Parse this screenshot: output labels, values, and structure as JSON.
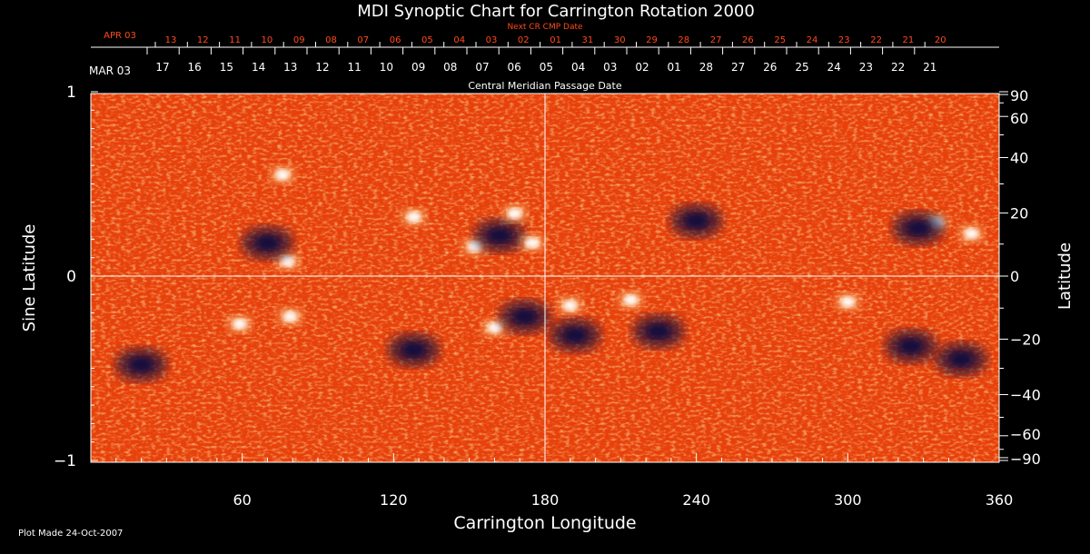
{
  "chart_data": {
    "type": "heatmap",
    "title": "MDI Synoptic Chart for Carrington Rotation 2000",
    "xlabel": "Carrington Longitude",
    "ylabel_left": "Sine Latitude",
    "ylabel_right": "Latitude",
    "xlim": [
      0,
      360
    ],
    "ylim_sine": [
      -1,
      1
    ],
    "x_ticks": [
      "60",
      "120",
      "180",
      "240",
      "300",
      "360"
    ],
    "y_ticks_left": [
      {
        "value": 1,
        "label": "1"
      },
      {
        "value": 0,
        "label": "0"
      },
      {
        "value": -1,
        "label": "−1"
      }
    ],
    "y_ticks_right": [
      {
        "value": 90,
        "label": "90"
      },
      {
        "value": 60,
        "label": "60"
      },
      {
        "value": 40,
        "label": "40"
      },
      {
        "value": 20,
        "label": "20"
      },
      {
        "value": 0,
        "label": "0"
      },
      {
        "value": -20,
        "label": "−20"
      },
      {
        "value": -40,
        "label": "−40"
      },
      {
        "value": -60,
        "label": "−60"
      },
      {
        "value": -90,
        "label": "−90"
      }
    ],
    "next_cr_axis": {
      "title": "Next CR CMP Date",
      "month_label": "APR 03",
      "labels": [
        "13",
        "12",
        "11",
        "10",
        "09",
        "08",
        "07",
        "06",
        "05",
        "04",
        "03",
        "02",
        "01",
        "31",
        "30",
        "29",
        "28",
        "27",
        "26",
        "25",
        "24",
        "23",
        "22",
        "21",
        "20"
      ]
    },
    "cmp_axis": {
      "title": "Central Meridian Passage Date",
      "month_label": "MAR 03",
      "labels": [
        "17",
        "16",
        "15",
        "14",
        "13",
        "12",
        "11",
        "10",
        "09",
        "08",
        "07",
        "06",
        "05",
        "04",
        "03",
        "02",
        "01",
        "28",
        "27",
        "26",
        "25",
        "24",
        "23",
        "22",
        "21"
      ]
    },
    "grid": "crosshair at 180° longitude and equator",
    "features": [
      {
        "polarity": "positive",
        "lon": 76,
        "sinlat": 0.55
      },
      {
        "polarity": "positive",
        "lon": 78,
        "sinlat": 0.08
      },
      {
        "polarity": "negative",
        "lon": 70,
        "sinlat": 0.18
      },
      {
        "polarity": "positive",
        "lon": 128,
        "sinlat": 0.32
      },
      {
        "polarity": "positive",
        "lon": 152,
        "sinlat": 0.16
      },
      {
        "polarity": "negative",
        "lon": 162,
        "sinlat": 0.22
      },
      {
        "polarity": "positive",
        "lon": 168,
        "sinlat": 0.34
      },
      {
        "polarity": "positive",
        "lon": 175,
        "sinlat": 0.18
      },
      {
        "polarity": "positive",
        "lon": 59,
        "sinlat": -0.26
      },
      {
        "polarity": "positive",
        "lon": 79,
        "sinlat": -0.22
      },
      {
        "polarity": "positive",
        "lon": 160,
        "sinlat": -0.28
      },
      {
        "polarity": "negative",
        "lon": 172,
        "sinlat": -0.22
      },
      {
        "polarity": "negative",
        "lon": 128,
        "sinlat": -0.4
      },
      {
        "polarity": "positive",
        "lon": 190,
        "sinlat": -0.16
      },
      {
        "polarity": "negative",
        "lon": 192,
        "sinlat": -0.32
      },
      {
        "polarity": "positive",
        "lon": 214,
        "sinlat": -0.13
      },
      {
        "polarity": "negative",
        "lon": 225,
        "sinlat": -0.3
      },
      {
        "polarity": "positive",
        "lon": 335,
        "sinlat": 0.29
      },
      {
        "polarity": "negative",
        "lon": 328,
        "sinlat": 0.26
      },
      {
        "polarity": "positive",
        "lon": 349,
        "sinlat": 0.23
      },
      {
        "polarity": "negative",
        "lon": 325,
        "sinlat": -0.38
      },
      {
        "polarity": "positive",
        "lon": 300,
        "sinlat": -0.14
      },
      {
        "polarity": "negative",
        "lon": 345,
        "sinlat": -0.45
      },
      {
        "polarity": "negative",
        "lon": 20,
        "sinlat": -0.48
      },
      {
        "polarity": "negative",
        "lon": 240,
        "sinlat": 0.3
      }
    ]
  },
  "footer": {
    "plot_made": "Plot Made 24-Oct-2007"
  },
  "colors": {
    "background": "#000000",
    "map_base": "#e8400a",
    "positive": "#ffffff",
    "negative": "#140c3c",
    "top_axis_red": "#ff4a1a"
  }
}
